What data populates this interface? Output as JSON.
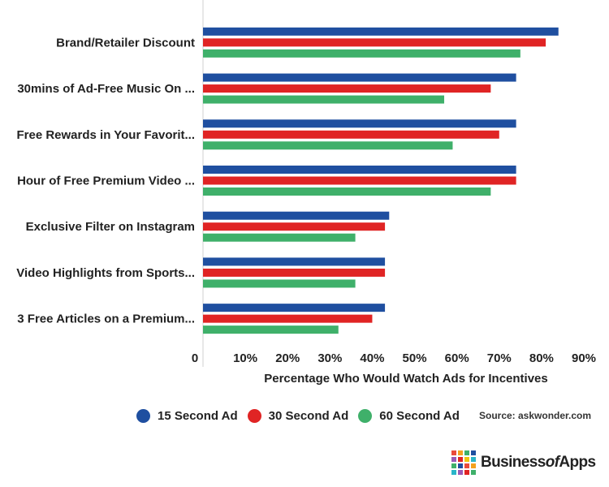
{
  "chart_data": {
    "type": "bar",
    "orientation": "horizontal",
    "categories": [
      "Brand/Retailer Discount",
      "30mins of Ad-Free Music On ...",
      "Free Rewards in Your Favorit...",
      "Hour of Free Premium Video ...",
      "Exclusive Filter on Instagram",
      "Video Highlights from Sports...",
      "3 Free Articles on a Premium..."
    ],
    "series": [
      {
        "name": "15 Second Ad",
        "color": "#1f4fa0",
        "values": [
          84,
          74,
          74,
          74,
          44,
          43,
          43
        ]
      },
      {
        "name": "30 Second Ad",
        "color": "#e02424",
        "values": [
          81,
          68,
          70,
          74,
          43,
          43,
          40
        ]
      },
      {
        "name": "60 Second Ad",
        "color": "#3fb06a",
        "values": [
          75,
          57,
          59,
          68,
          36,
          36,
          32
        ]
      }
    ],
    "xlabel": "Percentage Who Would Watch Ads for Incentives",
    "ylabel": "",
    "xlim": [
      0,
      90
    ],
    "x_ticks": [
      "0",
      "10%",
      "20%",
      "30%",
      "40%",
      "50%",
      "60%",
      "70%",
      "80%",
      "90%"
    ],
    "grid": false,
    "legend_position": "bottom"
  },
  "source": "Source: askwonder.com",
  "logo": {
    "pre": "Business",
    "mid": "of",
    "post": "Apps"
  }
}
